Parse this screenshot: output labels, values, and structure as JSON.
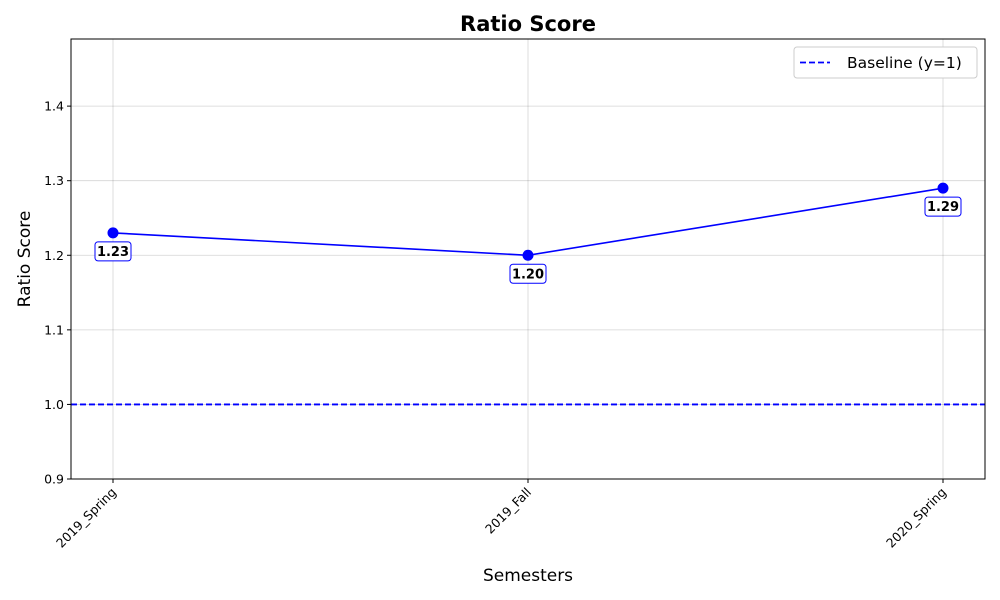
{
  "chart_data": {
    "type": "line",
    "title": "Ratio Score",
    "xlabel": "Semesters",
    "ylabel": "Ratio Score",
    "categories": [
      "2019_Spring",
      "2019_Fall",
      "2020_Spring"
    ],
    "series": [
      {
        "values": [
          1.23,
          1.2,
          1.29
        ],
        "value_labels": [
          "1.23",
          "1.20",
          "1.29"
        ],
        "color": "#0000ff",
        "marker": "circle"
      }
    ],
    "baseline": {
      "name": "Baseline (y=1)",
      "y": 1.0,
      "color": "#0000ff",
      "style": "dashed"
    },
    "ylim": [
      0.9,
      1.49
    ],
    "yticks": [
      0.9,
      1.0,
      1.1,
      1.2,
      1.3,
      1.4
    ],
    "ytick_labels": [
      "0.9",
      "1.0",
      "1.1",
      "1.2",
      "1.3",
      "1.4"
    ],
    "grid": true,
    "legend_position": "top-right",
    "xtick_rotation": 45
  }
}
